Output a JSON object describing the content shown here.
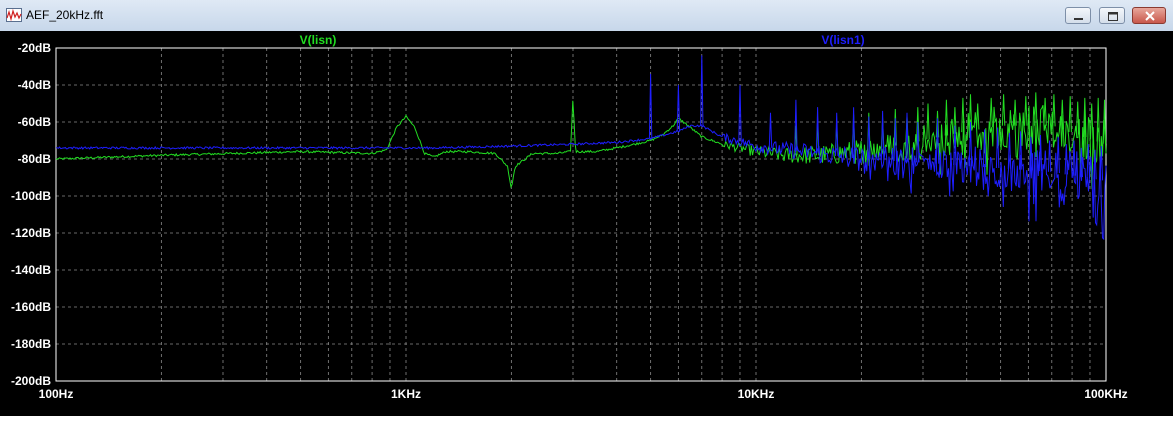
{
  "window": {
    "title": "AEF_20kHz.fft"
  },
  "chart_data": {
    "type": "line",
    "x_scale": "log",
    "xlim": [
      100,
      100000
    ],
    "ylim": [
      -200,
      -20
    ],
    "x_ticks": [
      {
        "value": 100,
        "label": "100Hz"
      },
      {
        "value": 1000,
        "label": "1KHz"
      },
      {
        "value": 10000,
        "label": "10KHz"
      },
      {
        "value": 100000,
        "label": "100KHz"
      }
    ],
    "y_ticks": [
      {
        "value": -20,
        "label": "-20dB"
      },
      {
        "value": -40,
        "label": "-40dB"
      },
      {
        "value": -60,
        "label": "-60dB"
      },
      {
        "value": -80,
        "label": "-80dB"
      },
      {
        "value": -100,
        "label": "-100dB"
      },
      {
        "value": -120,
        "label": "-120dB"
      },
      {
        "value": -140,
        "label": "-140dB"
      },
      {
        "value": -160,
        "label": "-160dB"
      },
      {
        "value": -180,
        "label": "-180dB"
      },
      {
        "value": -200,
        "label": "-200dB"
      }
    ],
    "grid": true,
    "series": [
      {
        "name": "V(lisn)",
        "color": "#22dd22",
        "points": [
          [
            100,
            -80
          ],
          [
            200,
            -78
          ],
          [
            500,
            -76
          ],
          [
            800,
            -77
          ],
          [
            880,
            -75
          ],
          [
            940,
            -63
          ],
          [
            1000,
            -57
          ],
          [
            1060,
            -63
          ],
          [
            1130,
            -77
          ],
          [
            1200,
            -79
          ],
          [
            1300,
            -76
          ],
          [
            1500,
            -76
          ],
          [
            1800,
            -77
          ],
          [
            1950,
            -84
          ],
          [
            2000,
            -96
          ],
          [
            2050,
            -84
          ],
          [
            2300,
            -77
          ],
          [
            2700,
            -77
          ],
          [
            2950,
            -76
          ],
          [
            3000,
            -47
          ],
          [
            3050,
            -76
          ],
          [
            3500,
            -76
          ],
          [
            4000,
            -74
          ],
          [
            4500,
            -72
          ],
          [
            5000,
            -70
          ],
          [
            5400,
            -67
          ],
          [
            5800,
            -62
          ],
          [
            6000,
            -58
          ],
          [
            6400,
            -62
          ],
          [
            7000,
            -68
          ],
          [
            8000,
            -72
          ],
          [
            9000,
            -74
          ],
          [
            10000,
            -76
          ],
          [
            12000,
            -78
          ],
          [
            15000,
            -78
          ],
          [
            20000,
            -76
          ],
          [
            30000,
            -70
          ],
          [
            40000,
            -65
          ],
          [
            50000,
            -62
          ],
          [
            70000,
            -62
          ],
          [
            100000,
            -72
          ]
        ],
        "harmonics": [
          [
            13000,
            -62
          ],
          [
            15000,
            -58
          ],
          [
            17000,
            -60
          ],
          [
            19000,
            -56
          ],
          [
            21000,
            -55
          ],
          [
            23000,
            -58
          ],
          [
            25000,
            -53
          ],
          [
            27000,
            -57
          ],
          [
            29000,
            -52
          ],
          [
            31000,
            -50
          ],
          [
            33000,
            -54
          ],
          [
            35000,
            -48
          ],
          [
            37000,
            -52
          ],
          [
            39000,
            -47
          ],
          [
            41000,
            -45
          ],
          [
            43000,
            -50
          ],
          [
            47000,
            -47
          ],
          [
            51000,
            -45
          ],
          [
            55000,
            -48
          ],
          [
            59000,
            -46
          ],
          [
            63000,
            -44
          ],
          [
            67000,
            -47
          ],
          [
            71000,
            -45
          ],
          [
            75000,
            -48
          ],
          [
            79000,
            -46
          ],
          [
            83000,
            -49
          ],
          [
            87000,
            -47
          ],
          [
            91000,
            -50
          ],
          [
            95000,
            -47
          ],
          [
            99000,
            -48
          ]
        ]
      },
      {
        "name": "V(lisn1)",
        "color": "#1e1eff",
        "points": [
          [
            100,
            -74
          ],
          [
            300,
            -74
          ],
          [
            800,
            -74
          ],
          [
            900,
            -74
          ],
          [
            1000,
            -74
          ],
          [
            1200,
            -74
          ],
          [
            2000,
            -73
          ],
          [
            3000,
            -72
          ],
          [
            4000,
            -71
          ],
          [
            5000,
            -69
          ],
          [
            6000,
            -65
          ],
          [
            6500,
            -62
          ],
          [
            7000,
            -62
          ],
          [
            8000,
            -68
          ],
          [
            10000,
            -73
          ],
          [
            15000,
            -77
          ],
          [
            20000,
            -80
          ],
          [
            30000,
            -82
          ],
          [
            50000,
            -85
          ],
          [
            70000,
            -87
          ],
          [
            100000,
            -92
          ]
        ],
        "harmonics": [
          [
            5000,
            -34
          ],
          [
            6000,
            -40
          ],
          [
            7000,
            -24
          ],
          [
            9000,
            -40
          ],
          [
            11000,
            -55
          ],
          [
            13000,
            -48
          ],
          [
            15000,
            -52
          ],
          [
            17000,
            -55
          ],
          [
            19000,
            -52
          ],
          [
            21000,
            -57
          ],
          [
            23000,
            -54
          ],
          [
            25000,
            -58
          ],
          [
            27000,
            -55
          ],
          [
            29000,
            -60
          ],
          [
            33000,
            -58
          ],
          [
            37000,
            -62
          ],
          [
            41000,
            -60
          ],
          [
            45000,
            -64
          ],
          [
            49000,
            -63
          ],
          [
            53000,
            -66
          ],
          [
            57000,
            -65
          ],
          [
            61000,
            -68
          ],
          [
            65000,
            -67
          ],
          [
            69000,
            -70
          ],
          [
            73000,
            -68
          ],
          [
            77000,
            -72
          ],
          [
            81000,
            -70
          ],
          [
            85000,
            -74
          ],
          [
            89000,
            -72
          ],
          [
            93000,
            -75
          ],
          [
            97000,
            -73
          ]
        ]
      }
    ]
  }
}
